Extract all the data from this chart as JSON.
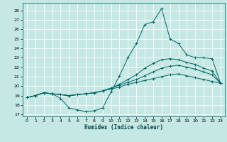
{
  "xlabel": "Humidex (Indice chaleur)",
  "xlim": [
    -0.5,
    23.5
  ],
  "ylim": [
    16.8,
    28.8
  ],
  "yticks": [
    17,
    18,
    19,
    20,
    21,
    22,
    23,
    24,
    25,
    26,
    27,
    28
  ],
  "xticks": [
    0,
    1,
    2,
    3,
    4,
    5,
    6,
    7,
    8,
    9,
    10,
    11,
    12,
    13,
    14,
    15,
    16,
    17,
    18,
    19,
    20,
    21,
    22,
    23
  ],
  "bg_color": "#c5e8e5",
  "grid_color": "#ffffff",
  "line_color": "#006666",
  "lines": [
    {
      "x": [
        0,
        1,
        2,
        3,
        4,
        5,
        6,
        7,
        8,
        9,
        10,
        11,
        12,
        13,
        14,
        15,
        16,
        17,
        18,
        19,
        20,
        21,
        22,
        23
      ],
      "y": [
        18.8,
        19.0,
        19.3,
        19.2,
        18.7,
        17.7,
        17.5,
        17.3,
        17.4,
        17.7,
        19.4,
        21.1,
        23.0,
        24.5,
        26.5,
        26.8,
        28.2,
        25.0,
        24.5,
        23.3,
        23.0,
        23.0,
        22.9,
        20.3
      ]
    },
    {
      "x": [
        0,
        1,
        2,
        3,
        4,
        5,
        6,
        7,
        8,
        9,
        10,
        11,
        12,
        13,
        14,
        15,
        16,
        17,
        18,
        19,
        20,
        21,
        22,
        23
      ],
      "y": [
        18.8,
        19.0,
        19.3,
        19.2,
        19.1,
        19.0,
        19.1,
        19.2,
        19.3,
        19.5,
        19.8,
        20.2,
        20.7,
        21.2,
        21.9,
        22.4,
        22.8,
        22.9,
        22.8,
        22.5,
        22.3,
        21.9,
        21.6,
        20.3
      ]
    },
    {
      "x": [
        0,
        1,
        2,
        3,
        4,
        5,
        6,
        7,
        8,
        9,
        10,
        11,
        12,
        13,
        14,
        15,
        16,
        17,
        18,
        19,
        20,
        21,
        22,
        23
      ],
      "y": [
        18.8,
        19.0,
        19.3,
        19.2,
        19.1,
        19.0,
        19.1,
        19.2,
        19.3,
        19.5,
        19.8,
        20.1,
        20.4,
        20.7,
        21.1,
        21.5,
        21.9,
        22.1,
        22.2,
        22.0,
        21.8,
        21.5,
        21.2,
        20.3
      ]
    },
    {
      "x": [
        0,
        1,
        2,
        3,
        4,
        5,
        6,
        7,
        8,
        9,
        10,
        11,
        12,
        13,
        14,
        15,
        16,
        17,
        18,
        19,
        20,
        21,
        22,
        23
      ],
      "y": [
        18.8,
        19.0,
        19.3,
        19.2,
        19.1,
        19.0,
        19.1,
        19.2,
        19.3,
        19.5,
        19.7,
        19.9,
        20.2,
        20.4,
        20.6,
        20.8,
        21.0,
        21.2,
        21.3,
        21.1,
        20.9,
        20.7,
        20.5,
        20.3
      ]
    }
  ]
}
